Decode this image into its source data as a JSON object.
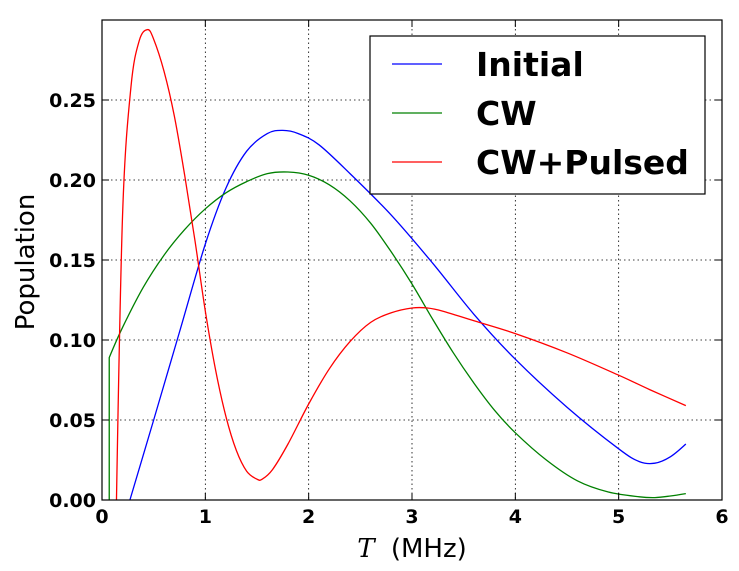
{
  "chart_data": {
    "type": "line",
    "title": "",
    "xlabel_symbol": "T",
    "xlabel_unit": "(MHz)",
    "ylabel": "Population",
    "xlim": [
      0,
      6
    ],
    "ylim": [
      0,
      0.3
    ],
    "grid": true,
    "grid_style": "dotted",
    "legend_placement": "top-right",
    "xticks": [
      "0",
      "1",
      "2",
      "3",
      "4",
      "5",
      "6"
    ],
    "yticks": [
      "0.00",
      "0.05",
      "0.10",
      "0.15",
      "0.20",
      "0.25"
    ],
    "series": [
      {
        "name": "Initial",
        "color": "#0000ff",
        "x": [
          0.27,
          0.5,
          0.75,
          1.0,
          1.2,
          1.4,
          1.6,
          1.75,
          1.9,
          2.1,
          2.4,
          2.8,
          3.2,
          3.6,
          4.0,
          4.5,
          5.0,
          5.2,
          5.35,
          5.5,
          5.65
        ],
        "y": [
          0.0,
          0.05,
          0.105,
          0.16,
          0.195,
          0.218,
          0.229,
          0.231,
          0.229,
          0.222,
          0.204,
          0.178,
          0.148,
          0.116,
          0.088,
          0.058,
          0.032,
          0.024,
          0.023,
          0.027,
          0.035
        ]
      },
      {
        "name": "CW",
        "color": "#008000",
        "x": [
          0.07,
          0.07,
          0.2,
          0.4,
          0.6,
          0.8,
          1.0,
          1.2,
          1.4,
          1.6,
          1.8,
          2.0,
          2.2,
          2.4,
          2.6,
          2.8,
          3.0,
          3.2,
          3.4,
          3.6,
          3.8,
          4.0,
          4.3,
          4.6,
          4.9,
          5.2,
          5.35,
          5.5,
          5.65
        ],
        "y": [
          0.0,
          0.089,
          0.108,
          0.133,
          0.153,
          0.169,
          0.182,
          0.192,
          0.199,
          0.204,
          0.205,
          0.203,
          0.197,
          0.187,
          0.173,
          0.155,
          0.135,
          0.113,
          0.092,
          0.073,
          0.056,
          0.042,
          0.025,
          0.012,
          0.005,
          0.002,
          0.0015,
          0.0025,
          0.004
        ]
      },
      {
        "name": "CW+Pulsed",
        "color": "#ff0000",
        "x": [
          0.14,
          0.2,
          0.28,
          0.36,
          0.44,
          0.5,
          0.6,
          0.7,
          0.8,
          0.9,
          1.0,
          1.1,
          1.2,
          1.3,
          1.4,
          1.5,
          1.55,
          1.65,
          1.8,
          2.0,
          2.2,
          2.4,
          2.6,
          2.8,
          3.0,
          3.15,
          3.3,
          3.6,
          4.0,
          4.5,
          5.0,
          5.3,
          5.65
        ],
        "y": [
          0.0,
          0.18,
          0.258,
          0.287,
          0.294,
          0.288,
          0.268,
          0.24,
          0.203,
          0.162,
          0.118,
          0.081,
          0.052,
          0.031,
          0.018,
          0.013,
          0.013,
          0.019,
          0.035,
          0.06,
          0.082,
          0.099,
          0.111,
          0.117,
          0.12,
          0.12,
          0.118,
          0.112,
          0.104,
          0.092,
          0.078,
          0.069,
          0.059
        ]
      }
    ]
  }
}
